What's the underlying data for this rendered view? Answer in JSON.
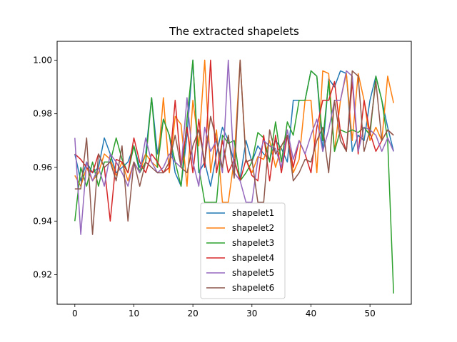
{
  "chart_data": {
    "type": "line",
    "title": "The extracted shapelets",
    "xlabel": "",
    "ylabel": "",
    "xlim": [
      -3,
      57
    ],
    "ylim": [
      0.909,
      1.007
    ],
    "xticks": [
      0,
      10,
      20,
      30,
      40,
      50
    ],
    "yticks": [
      0.92,
      0.94,
      0.96,
      0.98,
      1.0
    ],
    "ytick_labels": [
      "0.92",
      "0.94",
      "0.96",
      "0.98",
      "1.00"
    ],
    "grid": false,
    "legend": "lower center",
    "x": [
      0,
      1,
      2,
      3,
      4,
      5,
      6,
      7,
      8,
      9,
      10,
      11,
      12,
      13,
      14,
      15,
      16,
      17,
      18,
      19,
      20,
      21,
      22,
      23,
      24,
      25,
      26,
      27,
      28,
      29,
      30,
      31,
      32,
      33,
      34,
      35,
      36,
      37,
      38,
      39,
      40,
      41,
      42,
      43,
      44,
      45,
      46,
      47,
      48,
      49,
      50,
      51,
      52,
      53,
      54
    ],
    "series": [
      {
        "name": "shapelet1",
        "color": "#1f77b4",
        "values": [
          0.965,
          0.955,
          0.962,
          0.958,
          0.96,
          0.971,
          0.965,
          0.958,
          0.96,
          0.962,
          0.968,
          0.96,
          0.965,
          0.986,
          0.965,
          0.978,
          0.972,
          0.958,
          0.953,
          0.972,
          1.0,
          0.958,
          0.962,
          0.953,
          0.965,
          0.975,
          0.97,
          0.962,
          0.956,
          0.97,
          0.962,
          0.968,
          0.965,
          0.963,
          0.97,
          0.967,
          0.962,
          0.985,
          0.985,
          0.985,
          0.996,
          0.994,
          0.966,
          0.993,
          0.99,
          0.996,
          0.995,
          0.966,
          0.972,
          0.97,
          0.985,
          0.994,
          0.985,
          0.975,
          0.966
        ]
      },
      {
        "name": "shapelet2",
        "color": "#ff7f0e",
        "values": [
          0.957,
          0.953,
          0.96,
          0.955,
          0.958,
          0.965,
          0.963,
          0.957,
          0.962,
          0.955,
          0.962,
          0.958,
          0.965,
          0.962,
          0.96,
          0.986,
          0.958,
          0.979,
          0.976,
          0.953,
          0.985,
          0.968,
          1.0,
          0.958,
          0.974,
          0.947,
          0.947,
          0.963,
          1.0,
          0.963,
          0.958,
          0.964,
          0.963,
          0.97,
          0.96,
          0.968,
          0.972,
          0.958,
          0.963,
          0.985,
          0.985,
          0.958,
          0.996,
          0.995,
          0.966,
          0.985,
          0.995,
          0.97,
          0.995,
          0.985,
          0.97,
          0.975,
          0.97,
          0.994,
          0.984
        ]
      },
      {
        "name": "shapelet3",
        "color": "#2ca02c",
        "values": [
          0.94,
          0.96,
          0.953,
          0.962,
          0.953,
          0.962,
          0.962,
          0.971,
          0.963,
          0.958,
          0.968,
          0.958,
          0.962,
          0.986,
          0.96,
          0.978,
          0.972,
          0.962,
          0.953,
          0.978,
          1.0,
          0.96,
          0.947,
          0.947,
          0.947,
          0.972,
          0.969,
          0.97,
          0.955,
          0.958,
          0.962,
          0.973,
          0.971,
          0.962,
          0.977,
          0.962,
          0.977,
          0.972,
          0.985,
          0.985,
          0.996,
          0.994,
          0.97,
          0.992,
          0.966,
          0.974,
          0.973,
          0.974,
          0.973,
          0.975,
          0.972,
          0.994,
          0.985,
          0.97,
          0.913
        ]
      },
      {
        "name": "shapelet4",
        "color": "#d62728",
        "values": [
          0.965,
          0.963,
          0.96,
          0.958,
          0.965,
          0.96,
          0.94,
          0.963,
          0.962,
          0.958,
          0.971,
          0.962,
          0.958,
          0.965,
          0.962,
          0.958,
          0.96,
          0.985,
          0.96,
          0.975,
          0.958,
          0.978,
          0.96,
          1.0,
          0.958,
          0.97,
          0.958,
          0.963,
          0.955,
          0.963,
          0.957,
          0.955,
          0.972,
          0.955,
          0.972,
          0.958,
          0.972,
          0.96,
          0.97,
          0.965,
          0.958,
          0.975,
          0.985,
          0.985,
          0.992,
          0.973,
          0.966,
          0.992,
          0.965,
          0.985,
          0.973,
          0.966,
          0.97,
          0.974,
          0.972
        ]
      },
      {
        "name": "shapelet5",
        "color": "#9467bd",
        "values": [
          0.971,
          0.935,
          0.962,
          0.955,
          0.96,
          0.953,
          0.965,
          0.962,
          0.958,
          0.953,
          0.962,
          0.958,
          0.971,
          0.962,
          0.958,
          0.96,
          0.965,
          0.962,
          0.96,
          0.986,
          0.962,
          0.953,
          0.975,
          0.966,
          0.97,
          0.958,
          1.0,
          0.958,
          0.955,
          0.947,
          0.947,
          0.963,
          0.97,
          0.968,
          0.967,
          0.96,
          0.974,
          0.963,
          0.97,
          0.965,
          0.972,
          0.978,
          0.966,
          0.974,
          0.985,
          0.985,
          0.996,
          0.994,
          0.966,
          0.975,
          0.974,
          0.972,
          0.966,
          0.971,
          0.966
        ]
      },
      {
        "name": "shapelet6",
        "color": "#8c564b",
        "values": [
          0.952,
          0.952,
          0.971,
          0.935,
          0.965,
          0.96,
          0.962,
          0.955,
          0.968,
          0.94,
          0.962,
          0.953,
          0.962,
          0.96,
          0.958,
          0.958,
          0.962,
          0.972,
          0.96,
          0.958,
          0.968,
          0.974,
          0.962,
          0.979,
          0.97,
          0.96,
          0.972,
          0.956,
          1.0,
          0.962,
          0.963,
          0.947,
          0.947,
          0.974,
          0.965,
          0.968,
          0.972,
          0.955,
          0.958,
          0.963,
          0.962,
          0.97,
          0.975,
          0.958,
          0.985,
          0.97,
          0.966,
          0.996,
          0.994,
          0.966,
          0.974,
          0.992,
          0.97,
          0.974,
          0.972
        ]
      }
    ]
  }
}
